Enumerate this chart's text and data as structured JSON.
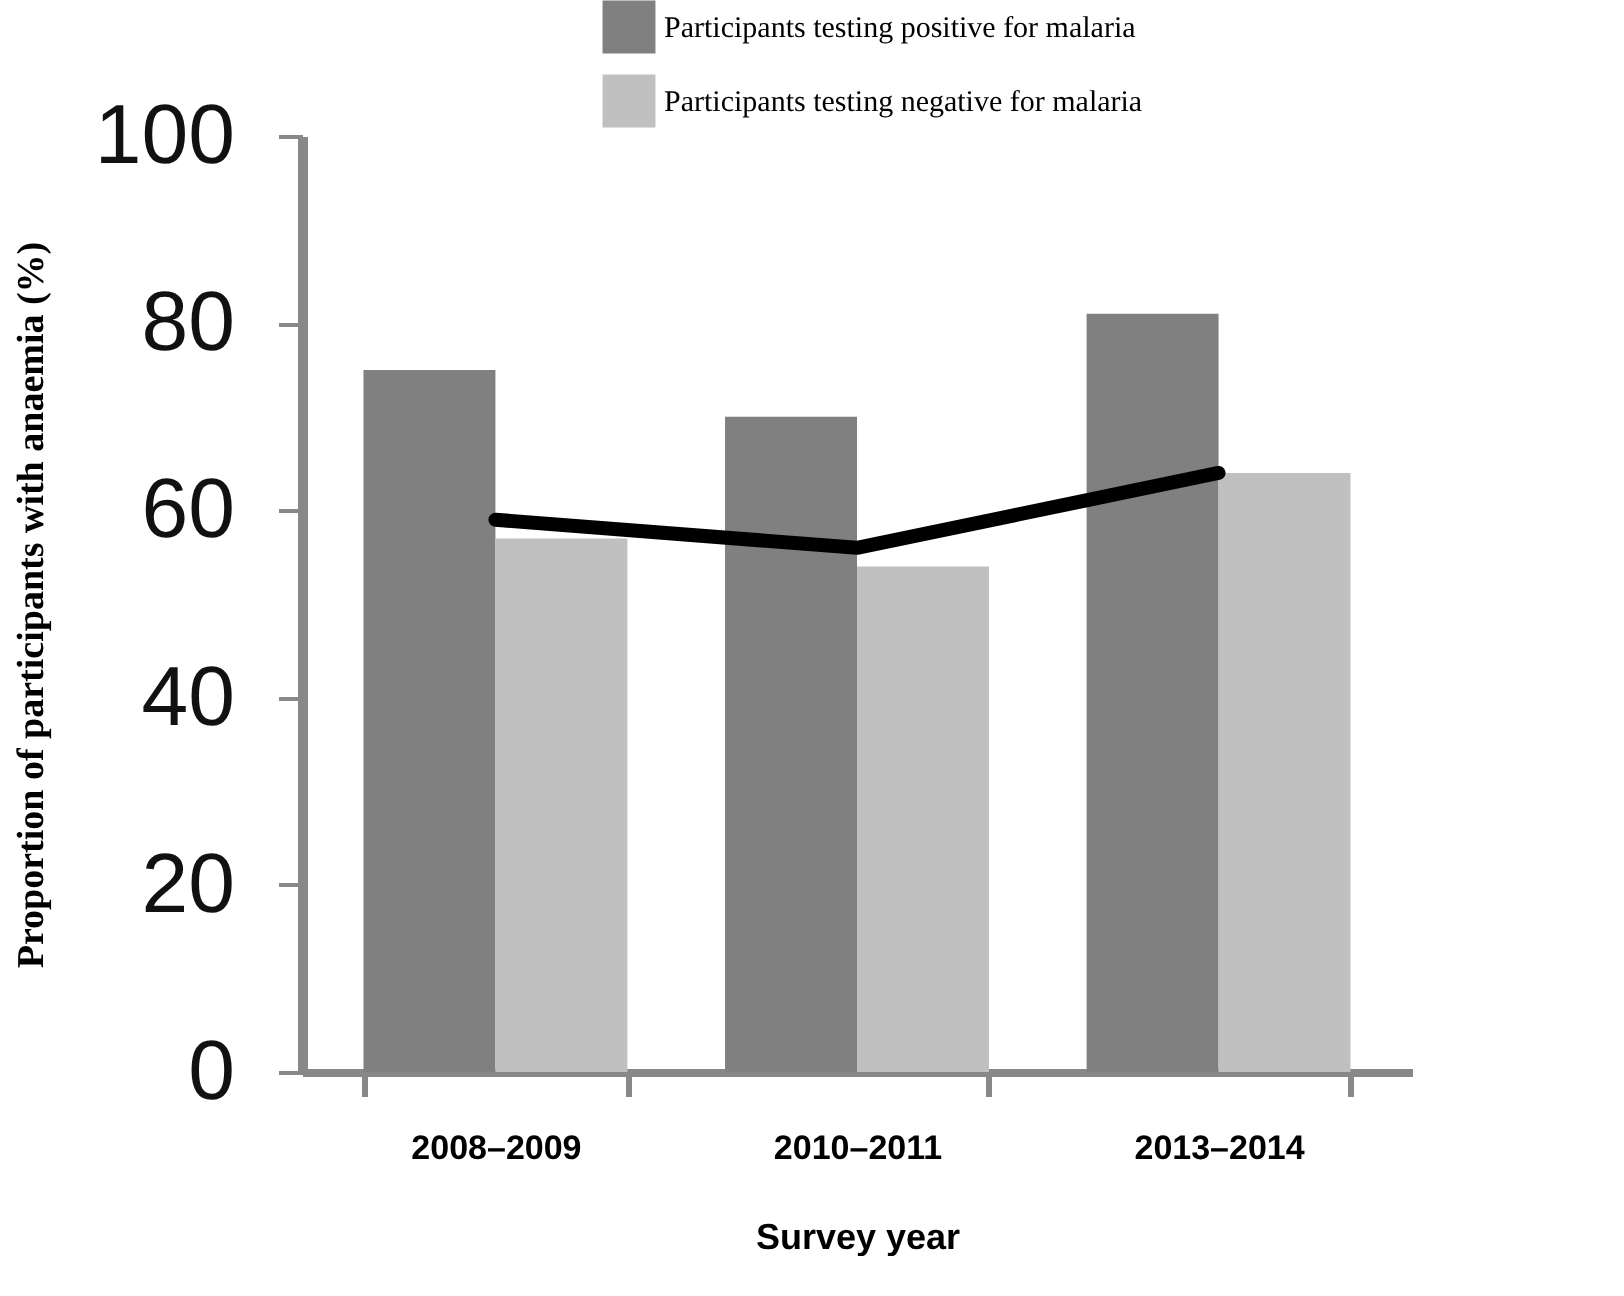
{
  "chart_data": {
    "type": "bar",
    "xlabel": "Survey year",
    "ylabel": "Proportion of participants with anaemia (%)",
    "categories": [
      "2008–2009",
      "2010–2011",
      "2013–2014"
    ],
    "series": [
      {
        "name": "Participants testing positive for malaria",
        "color": "#808080",
        "values": [
          75,
          70,
          81
        ]
      },
      {
        "name": "Participants testing negative for malaria",
        "color": "#c0c0c0",
        "values": [
          57,
          54,
          64
        ]
      },
      {
        "type": "line",
        "color": "#000000",
        "values": [
          59,
          56,
          64
        ]
      }
    ],
    "ylim": [
      0,
      100
    ],
    "yticks": [
      0,
      20,
      40,
      60,
      80,
      100
    ],
    "grid": false,
    "legend": "top right",
    "marker": "none",
    "line_style": "solid"
  }
}
